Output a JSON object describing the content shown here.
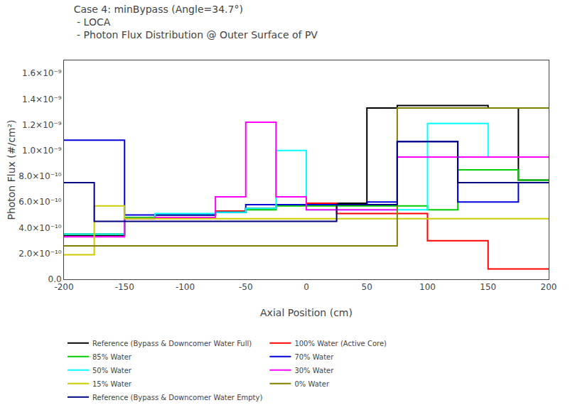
{
  "chart_data": {
    "type": "step",
    "title": "Case 4: minBypass (Angle=34.7°)\n - LOCA\n - Photon Flux Distribution @ Outer Surface of PV",
    "xlabel": "Axial Position (cm)",
    "ylabel": "Photon Flux (#/cm²)",
    "bins": [
      -200,
      -175,
      -150,
      -125,
      -100,
      -75,
      -50,
      -25,
      0,
      25,
      50,
      75,
      100,
      125,
      150,
      175,
      200
    ],
    "series": [
      {
        "name": "Reference (Bypass & Downcomer Water Full)",
        "color": "#000000",
        "values": [
          3.4e-10,
          3.4e-10,
          4.8e-10,
          5e-10,
          5e-10,
          5.3e-10,
          5.5e-10,
          5.8e-10,
          5.9e-10,
          5.9e-10,
          1.33e-09,
          1.35e-09,
          1.35e-09,
          1.35e-09,
          1.33e-09,
          7.7e-10
        ]
      },
      {
        "name": "100% Water (Active Core)",
        "color": "#ff0000",
        "values": [
          3.5e-10,
          3.5e-10,
          4.8e-10,
          5e-10,
          5e-10,
          5.3e-10,
          5.5e-10,
          5.8e-10,
          5.9e-10,
          5.1e-10,
          5.1e-10,
          5.1e-10,
          3e-10,
          3e-10,
          8e-11,
          8e-11
        ]
      },
      {
        "name": "85% Water",
        "color": "#00cc00",
        "values": [
          3.5e-10,
          3.5e-10,
          4.8e-10,
          5e-10,
          5e-10,
          5.2e-10,
          5.4e-10,
          5.7e-10,
          5.7e-10,
          5.7e-10,
          5.7e-10,
          5.7e-10,
          5.4e-10,
          8.5e-10,
          8.5e-10,
          7.7e-10
        ]
      },
      {
        "name": "70% Water",
        "color": "#0000dd",
        "values": [
          1.08e-09,
          1.08e-09,
          5e-10,
          5e-10,
          5e-10,
          5.2e-10,
          5.8e-10,
          5.8e-10,
          5.8e-10,
          5.8e-10,
          6e-10,
          1.07e-09,
          1.07e-09,
          6e-10,
          6e-10,
          7.5e-10
        ]
      },
      {
        "name": "50% Water",
        "color": "#00ffff",
        "values": [
          3.5e-10,
          3.5e-10,
          4.7e-10,
          5.1e-10,
          5.1e-10,
          5.2e-10,
          5.5e-10,
          1e-09,
          5.4e-10,
          5.4e-10,
          5.4e-10,
          5.4e-10,
          1.21e-09,
          1.21e-09,
          9.5e-10,
          9.5e-10
        ]
      },
      {
        "name": "30% Water",
        "color": "#ff00ff",
        "values": [
          3.3e-10,
          3.3e-10,
          4.7e-10,
          4.8e-10,
          4.8e-10,
          6.4e-10,
          1.22e-09,
          6.4e-10,
          5.4e-10,
          5.4e-10,
          5.4e-10,
          9.5e-10,
          9.5e-10,
          9.5e-10,
          9.5e-10,
          9.5e-10
        ]
      },
      {
        "name": "15% Water",
        "color": "#cccc00",
        "values": [
          1.9e-10,
          5.7e-10,
          4.7e-10,
          4.7e-10,
          4.7e-10,
          4.7e-10,
          4.7e-10,
          4.7e-10,
          4.7e-10,
          4.7e-10,
          4.7e-10,
          4.7e-10,
          4.7e-10,
          4.7e-10,
          4.7e-10,
          4.7e-10
        ]
      },
      {
        "name": "0% Water",
        "color": "#808000",
        "values": [
          2.6e-10,
          2.6e-10,
          2.6e-10,
          2.6e-10,
          2.6e-10,
          2.6e-10,
          2.6e-10,
          2.6e-10,
          2.6e-10,
          2.6e-10,
          2.6e-10,
          1.33e-09,
          1.33e-09,
          1.33e-09,
          1.33e-09,
          1.33e-09
        ]
      },
      {
        "name": "Reference (Bypass & Downcomer Water Empty)",
        "color": "#000080",
        "values": [
          7.5e-10,
          4.5e-10,
          4.5e-10,
          4.5e-10,
          4.5e-10,
          4.5e-10,
          4.5e-10,
          4.5e-10,
          4.5e-10,
          5.8e-10,
          5.8e-10,
          1.07e-09,
          1.07e-09,
          7.5e-10,
          7.5e-10,
          7.5e-10
        ]
      }
    ],
    "xlim": [
      -200,
      200
    ],
    "ylim": [
      0,
      1.7e-09
    ],
    "xticks": [
      -200,
      -150,
      -100,
      -50,
      0,
      50,
      100,
      150,
      200
    ],
    "yticks": [
      {
        "value": 0,
        "label": "0.0"
      },
      {
        "value": 2e-10,
        "label": "2.0×10⁻¹⁰"
      },
      {
        "value": 4e-10,
        "label": "4.0×10⁻¹⁰"
      },
      {
        "value": 6e-10,
        "label": "6.0×10⁻¹⁰"
      },
      {
        "value": 8e-10,
        "label": "8.0×10⁻¹⁰"
      },
      {
        "value": 1e-09,
        "label": "1.0×10⁻⁹"
      },
      {
        "value": 1.2e-09,
        "label": "1.2×10⁻⁹"
      },
      {
        "value": 1.4e-09,
        "label": "1.4×10⁻⁹"
      },
      {
        "value": 1.6e-09,
        "label": "1.6×10⁻⁹"
      }
    ],
    "grid": false,
    "legend": "bottom"
  }
}
